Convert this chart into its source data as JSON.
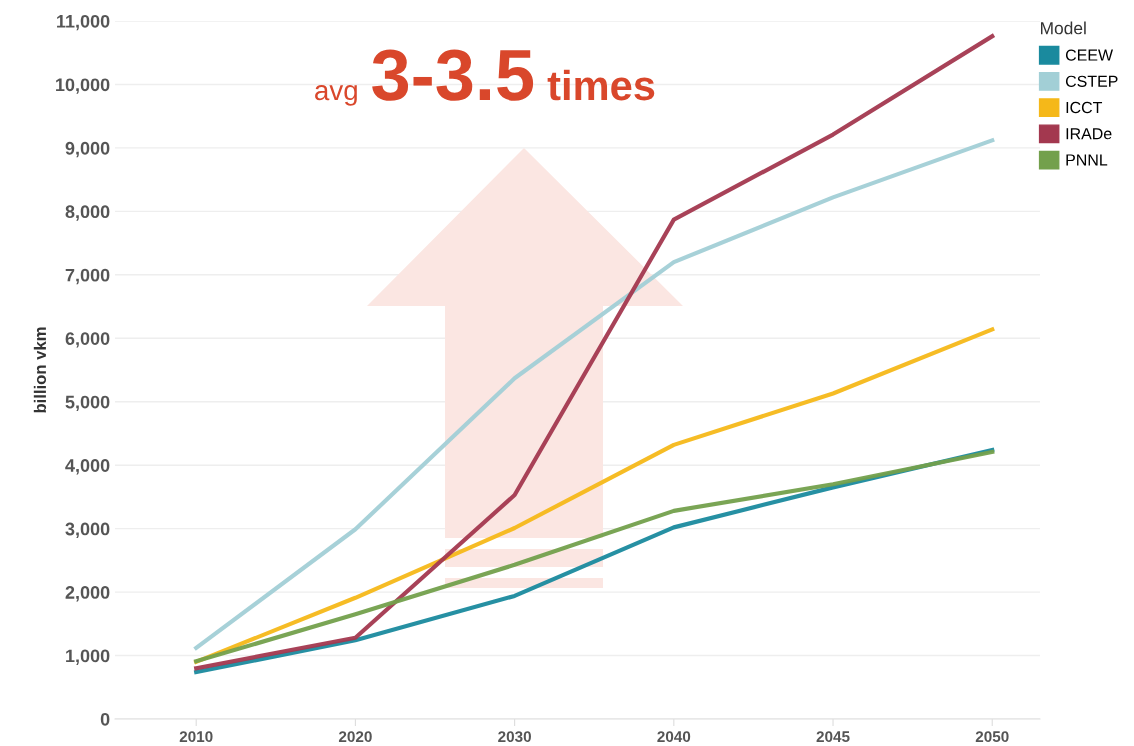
{
  "chart_data": {
    "type": "line",
    "ylabel": "billion vkm",
    "legend_title": "Model",
    "categories": [
      "2010",
      "2020",
      "2030",
      "2040",
      "2045",
      "2050"
    ],
    "series": [
      {
        "name": "CEEW",
        "color": "#1a8a9e",
        "values": [
          740,
          1240,
          1940,
          3020,
          3650,
          4240
        ]
      },
      {
        "name": "CSTEP",
        "color": "#a2cfd6",
        "values": [
          1120,
          2990,
          5370,
          7200,
          8220,
          9120
        ]
      },
      {
        "name": "ICCT",
        "color": "#f5b819",
        "values": [
          900,
          1910,
          3010,
          4320,
          5130,
          6140
        ]
      },
      {
        "name": "IRADe",
        "color": "#a3384f",
        "values": [
          800,
          1280,
          3530,
          7870,
          9210,
          10760
        ]
      },
      {
        "name": "PNNL",
        "color": "#73a04c",
        "values": [
          910,
          1650,
          2430,
          3280,
          3700,
          4210
        ]
      }
    ],
    "ylim": [
      0,
      11000
    ],
    "yticks": [
      0,
      {
        "value": 1000,
        "label": "1,000"
      },
      {
        "value": 2000,
        "label": "2,000"
      },
      {
        "value": 3000,
        "label": "3,000"
      },
      {
        "value": 4000,
        "label": "4,000"
      },
      {
        "value": 5000,
        "label": "5,000"
      },
      {
        "value": 6000,
        "label": "6,000"
      },
      {
        "value": 7000,
        "label": "7,000"
      },
      {
        "value": 8000,
        "label": "8,000"
      },
      {
        "value": 9000,
        "label": "9,000"
      },
      {
        "value": 10000,
        "label": "10,000"
      },
      {
        "value": 11000,
        "label": "11,000"
      }
    ],
    "grid": "y",
    "legend": "top right",
    "marker": "none",
    "line_style": "solid",
    "annotations": [
      "avg 3-3.5 times"
    ]
  }
}
